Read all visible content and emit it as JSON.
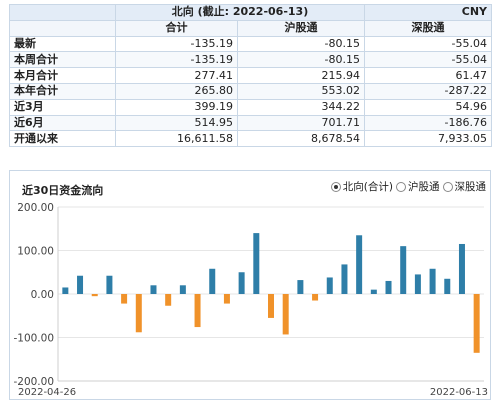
{
  "table": {
    "title": "北向 (截止: 2022-06-13)",
    "currency": "CNY",
    "columns": [
      "",
      "合计",
      "沪股通",
      "深股通"
    ],
    "rows": [
      {
        "label": "最新",
        "total": "-135.19",
        "sh": "-80.15",
        "sz": "-55.04"
      },
      {
        "label": "本周合计",
        "total": "-135.19",
        "sh": "-80.15",
        "sz": "-55.04"
      },
      {
        "label": "本月合计",
        "total": "277.41",
        "sh": "215.94",
        "sz": "61.47"
      },
      {
        "label": "本年合计",
        "total": "265.80",
        "sh": "553.02",
        "sz": "-287.22"
      },
      {
        "label": "近3月",
        "total": "399.19",
        "sh": "344.22",
        "sz": "54.96"
      },
      {
        "label": "近6月",
        "total": "514.95",
        "sh": "701.71",
        "sz": "-186.76"
      },
      {
        "label": "开通以来",
        "total": "16,611.58",
        "sh": "8,678.54",
        "sz": "7,933.05"
      }
    ]
  },
  "chart_section": {
    "title": "近30日资金流向",
    "options": [
      {
        "label": "北向(合计)",
        "selected": true
      },
      {
        "label": "沪股通",
        "selected": false
      },
      {
        "label": "深股通",
        "selected": false
      }
    ]
  },
  "colors": {
    "positive": "#2e7ea8",
    "negative": "#f0922a",
    "grid": "#e6e6e6",
    "axis_text": "#444444"
  },
  "chart_data": {
    "type": "bar",
    "title": "近30日资金流向",
    "x_start_label": "2022-04-26",
    "x_end_label": "2022-06-13",
    "yticks": [
      "200.00",
      "100.00",
      "0.00",
      "-100.00",
      "-200.00"
    ],
    "ylim": [
      -200,
      200
    ],
    "grid": true,
    "values": [
      15,
      42,
      -5,
      42,
      -22,
      -88,
      20,
      -27,
      20,
      -76,
      58,
      -22,
      50,
      140,
      -55,
      -93,
      32,
      -15,
      38,
      68,
      135,
      10,
      30,
      110,
      45,
      58,
      35,
      115,
      -135.19
    ]
  }
}
